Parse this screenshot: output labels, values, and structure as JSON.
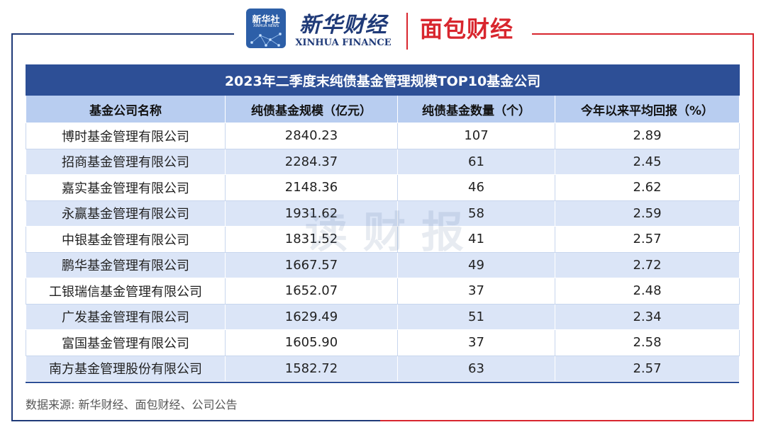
{
  "logos": {
    "xinhua_badge_cn": "新华社",
    "xinhua_badge_en": "XINHUA NEWS",
    "xinhua_finance_cn": "新华财经",
    "xinhua_finance_en": "XINHUA FINANCE",
    "mianbao_finance": "面包财经"
  },
  "watermark": "读财报",
  "colors": {
    "title_bg": "#2d4f96",
    "header_bg": "#b8cdf0",
    "stripe_bg": "#dbe5f7",
    "frame_left": "#1f3a78",
    "frame_right": "#d8262e"
  },
  "chart_data": {
    "type": "table",
    "title": "2023年二季度末纯债基金管理规模TOP10基金公司",
    "columns": [
      "基金公司名称",
      "纯债基金规模（亿元）",
      "纯债基金数量（个）",
      "今年以来平均回报（%）"
    ],
    "rows": [
      [
        "博时基金管理有限公司",
        "2840.23",
        "107",
        "2.89"
      ],
      [
        "招商基金管理有限公司",
        "2284.37",
        "61",
        "2.45"
      ],
      [
        "嘉实基金管理有限公司",
        "2148.36",
        "46",
        "2.62"
      ],
      [
        "永赢基金管理有限公司",
        "1931.62",
        "58",
        "2.59"
      ],
      [
        "中银基金管理有限公司",
        "1831.52",
        "41",
        "2.57"
      ],
      [
        "鹏华基金管理有限公司",
        "1667.57",
        "49",
        "2.72"
      ],
      [
        "工银瑞信基金管理有限公司",
        "1652.07",
        "37",
        "2.48"
      ],
      [
        "广发基金管理有限公司",
        "1629.49",
        "51",
        "2.34"
      ],
      [
        "富国基金管理有限公司",
        "1605.90",
        "37",
        "2.58"
      ],
      [
        "南方基金管理股份有限公司",
        "1582.72",
        "63",
        "2.57"
      ]
    ]
  },
  "source": "数据来源: 新华财经、面包财经、公司公告"
}
